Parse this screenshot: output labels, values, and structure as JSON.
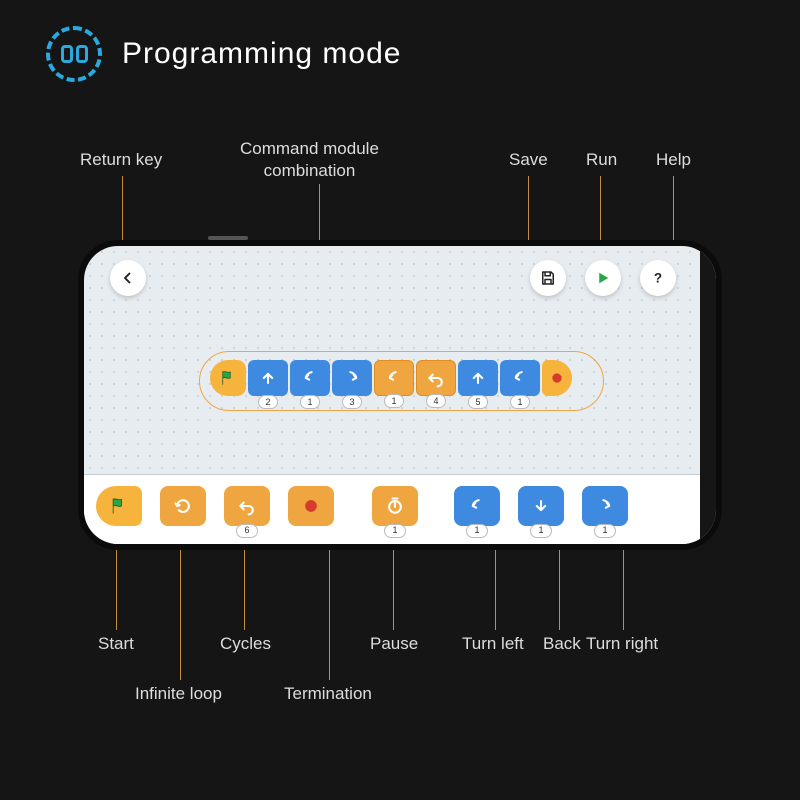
{
  "header": {
    "title": "Programming mode"
  },
  "callouts": {
    "return_key": "Return key",
    "command_module": "Command module\ncombination",
    "save": "Save",
    "run": "Run",
    "help": "Help",
    "start": "Start",
    "infinite_loop": "Infinite loop",
    "cycles": "Cycles",
    "termination": "Termination",
    "pause": "Pause",
    "turn_left": "Turn left",
    "back": "Back",
    "turn_right": "Turn right"
  },
  "colors": {
    "bg": "#151515",
    "accent_blue": "#2aa9e0",
    "block_blue": "#3d8ae0",
    "block_orange": "#f0a640",
    "block_yellow": "#f6b43c",
    "leader": "#c48d3d",
    "screen_bg": "#e7ecf0",
    "run_green": "#28a746",
    "text_light": "#dddddd"
  },
  "sequence": {
    "items": [
      {
        "color": "blue",
        "icon": "up",
        "count": "2"
      },
      {
        "color": "blue",
        "icon": "left",
        "count": "1"
      },
      {
        "color": "blue",
        "icon": "right",
        "count": "3"
      },
      {
        "color": "orange",
        "icon": "left",
        "count": "1"
      },
      {
        "color": "orange",
        "icon": "undo",
        "count": "4"
      },
      {
        "color": "blue",
        "icon": "up",
        "count": "5"
      },
      {
        "color": "blue",
        "icon": "left",
        "count": "1"
      }
    ],
    "end_icon": "stop"
  },
  "palette": {
    "items": [
      {
        "kind": "start",
        "icon": "flag"
      },
      {
        "kind": "orange",
        "icon": "loop"
      },
      {
        "kind": "orange",
        "icon": "undo",
        "count": "6"
      },
      {
        "kind": "orange",
        "icon": "stop"
      },
      {
        "kind": "orange",
        "icon": "timer",
        "count": "1"
      },
      {
        "kind": "blue",
        "icon": "left",
        "count": "1"
      },
      {
        "kind": "blue",
        "icon": "down",
        "count": "1"
      },
      {
        "kind": "blue",
        "icon": "right",
        "count": "1"
      }
    ]
  }
}
